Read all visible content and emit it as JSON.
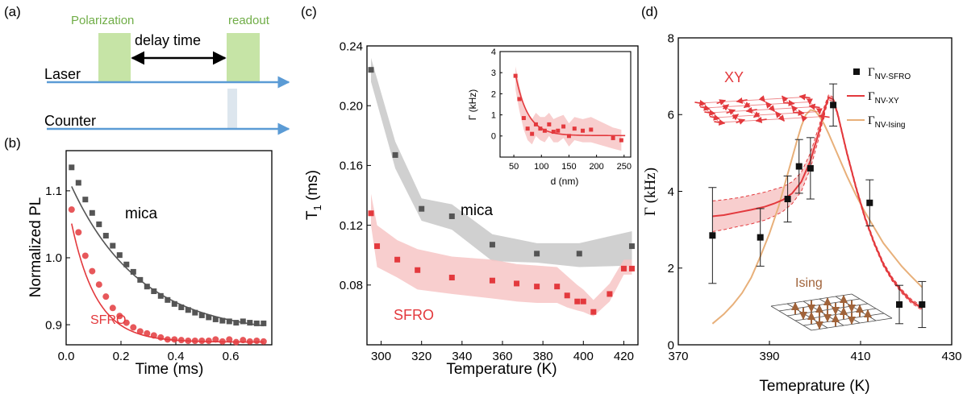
{
  "panels": {
    "a": {
      "label": "(a)",
      "polarization_label": "Polarization",
      "readout_label": "readout",
      "delay_label": "delay time",
      "laser_label": "Laser",
      "counter_label": "Counter",
      "block_color": "#c6e4a6",
      "text_green": "#70ad47",
      "arrow_color": "#5b9bd5"
    }
  },
  "chart_data": [
    {
      "panel": "(b)",
      "type": "scatter",
      "xlabel": "Time (ms)",
      "ylabel": "Normalized PL",
      "xlim": [
        0,
        0.75
      ],
      "ylim": [
        0.87,
        1.16
      ],
      "xticks": [
        "0.0",
        "0.2",
        "0.4",
        "0.6"
      ],
      "xtick_values": [
        0,
        0.2,
        0.4,
        0.6
      ],
      "yticks": [
        "0.9",
        "1.0",
        "1.1"
      ],
      "ytick_values": [
        0.9,
        1.0,
        1.1
      ],
      "series": [
        {
          "name": "mica",
          "color": "#555555",
          "marker": "square",
          "fit": {
            "model": "exp",
            "A": 0.24,
            "tau": 0.25,
            "c": 0.885
          },
          "x": [
            0.02,
            0.045,
            0.07,
            0.095,
            0.12,
            0.145,
            0.17,
            0.195,
            0.22,
            0.245,
            0.27,
            0.295,
            0.32,
            0.345,
            0.37,
            0.395,
            0.42,
            0.445,
            0.47,
            0.495,
            0.52,
            0.545,
            0.57,
            0.595,
            0.62,
            0.645,
            0.67,
            0.695,
            0.72
          ],
          "y": [
            1.135,
            1.112,
            1.087,
            1.067,
            1.05,
            1.033,
            1.018,
            1.004,
            0.99,
            0.979,
            0.967,
            0.957,
            0.95,
            0.943,
            0.937,
            0.931,
            0.926,
            0.922,
            0.918,
            0.914,
            0.911,
            0.908,
            0.906,
            0.905,
            0.903,
            0.905,
            0.903,
            0.902,
            0.902
          ]
        },
        {
          "name": "SFRO",
          "color": "#e3393d",
          "marker": "circle",
          "fit": {
            "model": "exp",
            "A": 0.22,
            "tau": 0.092,
            "c": 0.874
          },
          "x": [
            0.02,
            0.045,
            0.07,
            0.095,
            0.12,
            0.145,
            0.17,
            0.195,
            0.22,
            0.245,
            0.27,
            0.295,
            0.32,
            0.345,
            0.37,
            0.395,
            0.42,
            0.445,
            0.47,
            0.495,
            0.52,
            0.545,
            0.57,
            0.595,
            0.62,
            0.645,
            0.67,
            0.695,
            0.72
          ],
          "y": [
            1.072,
            1.038,
            1.003,
            0.98,
            0.96,
            0.942,
            0.925,
            0.913,
            0.903,
            0.896,
            0.89,
            0.887,
            0.884,
            0.881,
            0.878,
            0.878,
            0.877,
            0.876,
            0.876,
            0.876,
            0.876,
            0.878,
            0.875,
            0.878,
            0.874,
            0.877,
            0.875,
            0.876,
            0.875
          ]
        }
      ]
    },
    {
      "panel": "(c)",
      "type": "scatter",
      "xlabel": "Temperature (K)",
      "ylabel": "T",
      "ylabel_sub": "1",
      "ylabel_unit": " (ms)",
      "xlim": [
        293,
        427
      ],
      "ylim": [
        0.04,
        0.24
      ],
      "xticks": [
        "300",
        "320",
        "340",
        "360",
        "380",
        "400",
        "420"
      ],
      "xtick_values": [
        300,
        320,
        340,
        360,
        380,
        400,
        420
      ],
      "yticks": [
        "0.08",
        "0.12",
        "0.16",
        "0.20",
        "0.24"
      ],
      "ytick_values": [
        0.08,
        0.12,
        0.16,
        0.2,
        0.24
      ],
      "series": [
        {
          "name": "mica",
          "color": "#555555",
          "band_color": "#c8c8c8",
          "x": [
            295,
            307,
            320,
            335,
            355,
            377,
            398,
            424
          ],
          "y": [
            0.224,
            0.167,
            0.131,
            0.126,
            0.107,
            0.101,
            0.101,
            0.106
          ],
          "band_lo": [
            0.216,
            0.158,
            0.123,
            0.117,
            0.096,
            0.095,
            0.092,
            0.093
          ],
          "band_hi": [
            0.232,
            0.176,
            0.138,
            0.134,
            0.114,
            0.108,
            0.108,
            0.116
          ]
        },
        {
          "name": "SFRO",
          "color": "#e3393d",
          "band_color": "#f7c5c5",
          "x": [
            295,
            298,
            308,
            318,
            335,
            355,
            367,
            377,
            387,
            392,
            397,
            400,
            405,
            413,
            420,
            424
          ],
          "y": [
            0.128,
            0.106,
            0.097,
            0.09,
            0.085,
            0.083,
            0.081,
            0.079,
            0.079,
            0.073,
            0.069,
            0.069,
            0.062,
            0.074,
            0.091,
            0.091
          ],
          "band_lo": [
            0.12,
            0.092,
            0.085,
            0.077,
            0.074,
            0.071,
            0.069,
            0.068,
            0.068,
            0.065,
            0.063,
            0.062,
            0.059,
            0.069,
            0.087,
            0.087
          ],
          "band_hi": [
            0.141,
            0.12,
            0.11,
            0.104,
            0.099,
            0.097,
            0.094,
            0.093,
            0.092,
            0.086,
            0.08,
            0.077,
            0.07,
            0.081,
            0.097,
            0.097
          ]
        }
      ]
    },
    {
      "panel": "(c) inset",
      "type": "scatter",
      "xlabel": "d (nm)",
      "ylabel": "Γ (kHz)",
      "xlim": [
        25,
        262
      ],
      "ylim": [
        -1,
        4
      ],
      "xticks": [
        "50",
        "100",
        "150",
        "200",
        "250"
      ],
      "xtick_values": [
        50,
        100,
        150,
        200,
        250
      ],
      "yticks": [
        "0",
        "1",
        "2",
        "3",
        "4"
      ],
      "ytick_values": [
        0,
        1,
        2,
        3,
        4
      ],
      "series": [
        {
          "name": "Γ",
          "color": "#e3393d",
          "band_color": "#f7c5c5",
          "fit": {
            "model": "exp",
            "A": 2.9,
            "tau": 22,
            "c": 0.02,
            "x0": 53
          },
          "x": [
            53,
            60,
            68,
            75,
            83,
            90,
            98,
            106,
            114,
            122,
            130,
            140,
            150,
            160,
            175,
            190,
            230,
            245
          ],
          "y": [
            2.85,
            1.75,
            0.85,
            0.35,
            0.1,
            0.55,
            0.35,
            0.25,
            0.55,
            0.2,
            0.25,
            0.45,
            0.0,
            0.35,
            0.25,
            0.3,
            -0.1,
            -0.2
          ],
          "band_lo": [
            2.2,
            1.2,
            0.3,
            -0.2,
            -0.4,
            0.0,
            -0.2,
            -0.3,
            0.0,
            -0.3,
            -0.3,
            -0.1,
            -0.5,
            -0.2,
            -0.3,
            -0.3,
            -0.6,
            -0.7
          ],
          "band_hi": [
            3.3,
            2.4,
            1.5,
            1.0,
            0.8,
            1.1,
            0.9,
            0.9,
            1.1,
            0.8,
            0.9,
            1.0,
            0.6,
            0.9,
            0.8,
            0.9,
            0.4,
            0.3
          ]
        }
      ]
    },
    {
      "panel": "(d)",
      "type": "scatter",
      "xlabel": "Temeprature (K)",
      "ylabel": "Γ (kHz)",
      "xlim": [
        370,
        430
      ],
      "ylim": [
        0,
        8
      ],
      "xticks": [
        "370",
        "390",
        "410",
        "430"
      ],
      "xtick_values": [
        370,
        390,
        410,
        430
      ],
      "yticks": [
        "0",
        "2",
        "4",
        "6",
        "8"
      ],
      "ytick_values": [
        0,
        2,
        4,
        6,
        8
      ],
      "legend_position": "top-right",
      "inset_labels": {
        "xy": "XY",
        "ising": "Ising"
      },
      "ising_color": "#a0633a",
      "series": [
        {
          "name": "Γ",
          "name_sub": "NV-SFRO",
          "color": "#111111",
          "marker": "square",
          "x": [
            377.5,
            388,
            394,
            396.5,
            399,
            404,
            412,
            418.5,
            423.5
          ],
          "y": [
            2.85,
            2.8,
            3.8,
            4.65,
            4.6,
            6.25,
            3.7,
            1.05,
            1.05
          ],
          "err": [
            1.25,
            0.75,
            0.6,
            0.7,
            0.8,
            0.55,
            0.6,
            0.5,
            0.6
          ]
        },
        {
          "name": "Γ",
          "name_sub": "NV-XY",
          "color": "#e3393d",
          "band_color": "#f7c5c5",
          "x": [
            377.5,
            380,
            383,
            386,
            389,
            391,
            393,
            395,
            397,
            399,
            401,
            402,
            403,
            404,
            405,
            406,
            407,
            409,
            411,
            413,
            415,
            417,
            419,
            421,
            423.5
          ],
          "y": [
            3.35,
            3.38,
            3.45,
            3.52,
            3.6,
            3.68,
            3.78,
            3.95,
            4.25,
            4.8,
            5.6,
            6.1,
            6.45,
            6.4,
            6.0,
            5.5,
            5.0,
            4.1,
            3.3,
            2.65,
            2.1,
            1.7,
            1.4,
            1.15,
            0.95
          ],
          "band_lo": [
            2.95,
            3.0,
            3.08,
            3.15,
            3.25,
            3.35,
            3.48,
            3.68,
            4.0,
            4.6,
            5.45,
            6.0,
            6.38,
            6.35,
            5.95,
            5.45,
            4.95,
            4.05,
            3.25,
            2.6,
            2.05,
            1.65,
            1.35,
            1.1,
            0.9
          ],
          "band_hi": [
            3.75,
            3.78,
            3.83,
            3.9,
            3.98,
            4.05,
            4.12,
            4.25,
            4.5,
            5.0,
            5.75,
            6.2,
            6.52,
            6.45,
            6.05,
            5.55,
            5.05,
            4.15,
            3.35,
            2.7,
            2.15,
            1.75,
            1.45,
            1.2,
            1.0
          ]
        },
        {
          "name": "Γ",
          "name_sub": "NV-Ising",
          "color": "#e8b07a",
          "x": [
            377.5,
            380,
            382,
            384,
            386,
            388,
            390,
            392,
            394,
            396,
            397,
            398,
            399,
            400,
            401,
            402,
            403,
            405,
            407,
            409,
            411,
            413,
            415,
            417,
            419,
            421,
            423.5
          ],
          "y": [
            0.55,
            0.8,
            1.05,
            1.35,
            1.75,
            2.3,
            2.9,
            3.6,
            4.45,
            5.3,
            5.7,
            6.0,
            6.12,
            6.1,
            5.95,
            5.75,
            5.5,
            4.95,
            4.4,
            3.9,
            3.45,
            3.05,
            2.65,
            2.35,
            2.05,
            1.8,
            1.5
          ]
        }
      ]
    }
  ]
}
